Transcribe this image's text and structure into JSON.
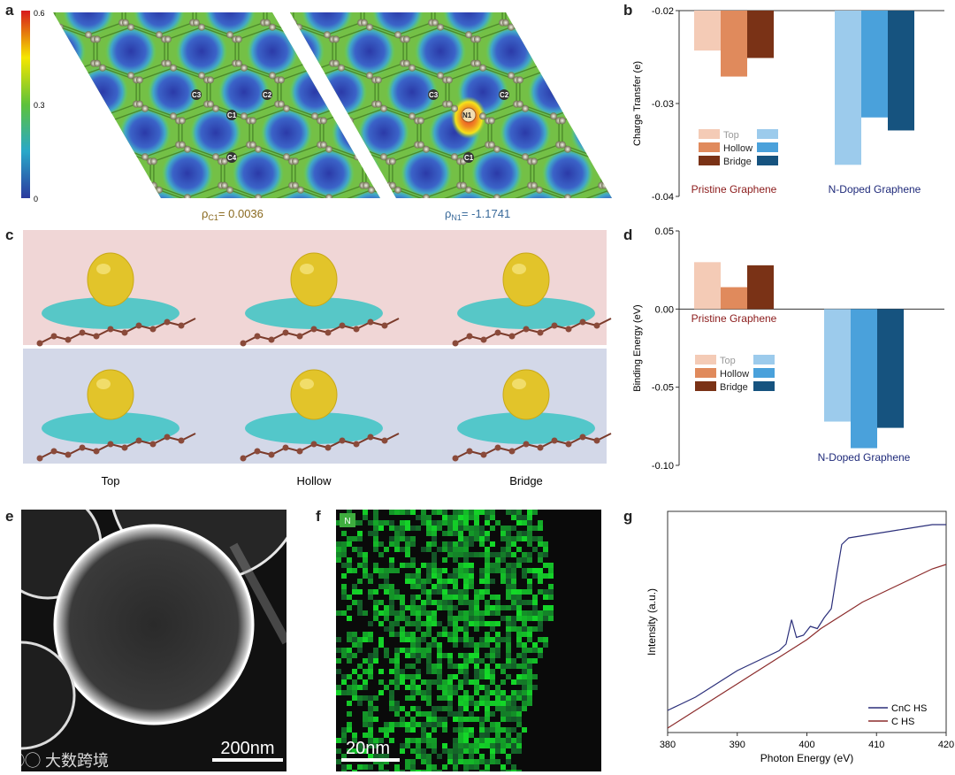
{
  "panels": {
    "a": "a",
    "b": "b",
    "c": "c",
    "d": "d",
    "e": "e",
    "f": "f",
    "g": "g"
  },
  "panel_a": {
    "colorbar_ticks": [
      "0.6",
      "0.3",
      "0"
    ],
    "colorbar_colors": [
      "#d7191c",
      "#f5e600",
      "#5ec23a",
      "#29a8c9",
      "#2b3a9e"
    ],
    "left_atoms": [
      "C3",
      "C2",
      "C1",
      "C4"
    ],
    "right_atoms": [
      "C3",
      "C2",
      "N1",
      "C1"
    ],
    "rho_c1_sym": "ρ",
    "rho_c1_sub": "C1",
    "rho_c1_val": "= 0.0036",
    "rho_n1_sym": "ρ",
    "rho_n1_sub": "N1",
    "rho_n1_val": "= -1.1741"
  },
  "panel_c": {
    "columns": [
      "Top",
      "Hollow",
      "Bridge"
    ],
    "row_colors": [
      "#f0d6d6",
      "#d3d8e8"
    ]
  },
  "panel_e": {
    "scale_bar": "200nm"
  },
  "panel_f": {
    "badge": "N",
    "scale_bar": "20nm"
  },
  "watermark": "大数跨境",
  "chart_data": [
    {
      "panel": "b",
      "type": "bar",
      "ylabel": "Charge Transfer (e)",
      "ylim": [
        -0.04,
        -0.02
      ],
      "yticks": [
        "-0.02",
        "-0.03",
        "-0.04"
      ],
      "groups": [
        {
          "name": "Pristine Graphene",
          "color": "#8b1a1a",
          "values": {
            "Top": -0.0243,
            "Hollow": -0.0271,
            "Bridge": -0.0251
          }
        },
        {
          "name": "N-Doped Graphene",
          "color": "#1f2a7a",
          "values": {
            "Top": -0.0366,
            "Hollow": -0.0315,
            "Bridge": -0.0329
          }
        }
      ],
      "legend": [
        "Top",
        "Hollow",
        "Bridge"
      ],
      "colors": {
        "pristine": [
          "#f4cbb6",
          "#e08a5c",
          "#7a3216"
        ],
        "ndoped": [
          "#9ccbec",
          "#4aa1db",
          "#16537f"
        ]
      }
    },
    {
      "panel": "d",
      "type": "bar",
      "ylabel": "Binding Energy (eV)",
      "ylim": [
        -0.1,
        0.05
      ],
      "yticks": [
        "0.05",
        "0.00",
        "-0.05",
        "-0.10"
      ],
      "groups": [
        {
          "name": "Pristine Graphene",
          "color": "#8b1a1a",
          "values": {
            "Top": 0.03,
            "Hollow": 0.014,
            "Bridge": 0.028
          }
        },
        {
          "name": "N-Doped Graphene",
          "color": "#1f2a7a",
          "values": {
            "Top": -0.072,
            "Hollow": -0.089,
            "Bridge": -0.076
          }
        }
      ],
      "legend": [
        "Top",
        "Hollow",
        "Bridge"
      ]
    },
    {
      "panel": "g",
      "type": "line",
      "xlabel": "Photon Energy (eV)",
      "ylabel": "Intensity (a.u.)",
      "xlim": [
        380,
        420
      ],
      "xticks": [
        "380",
        "390",
        "400",
        "410",
        "420"
      ],
      "series": [
        {
          "name": "CnC HS",
          "color": "#2b2f7a",
          "x": [
            380,
            382,
            384,
            386,
            388,
            390,
            392,
            394,
            396,
            397,
            397.8,
            398.5,
            399.5,
            400.5,
            401.5,
            402.5,
            403.5,
            404.3,
            405,
            406,
            408,
            410,
            412,
            414,
            416,
            418,
            420
          ],
          "y": [
            0.1,
            0.13,
            0.16,
            0.2,
            0.24,
            0.28,
            0.31,
            0.34,
            0.37,
            0.4,
            0.51,
            0.43,
            0.44,
            0.48,
            0.47,
            0.52,
            0.56,
            0.72,
            0.85,
            0.88,
            0.89,
            0.9,
            0.91,
            0.92,
            0.93,
            0.94,
            0.94
          ]
        },
        {
          "name": "C HS",
          "color": "#8b2b2b",
          "x": [
            380,
            382,
            384,
            386,
            388,
            390,
            392,
            394,
            396,
            398,
            400,
            402,
            404,
            406,
            408,
            410,
            412,
            414,
            416,
            418,
            420
          ],
          "y": [
            0.02,
            0.06,
            0.1,
            0.14,
            0.18,
            0.22,
            0.26,
            0.3,
            0.34,
            0.38,
            0.42,
            0.47,
            0.51,
            0.55,
            0.59,
            0.62,
            0.65,
            0.68,
            0.71,
            0.74,
            0.76
          ]
        }
      ]
    }
  ]
}
